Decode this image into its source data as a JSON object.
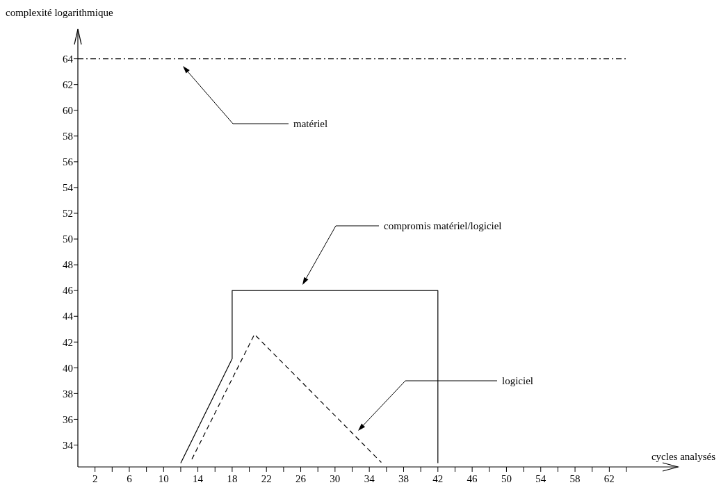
{
  "chart_data": {
    "type": "line",
    "xlabel": "cycles analysés",
    "ylabel": "complexité logarithmique",
    "xlim": [
      0,
      70
    ],
    "ylim": [
      32.3,
      66.3
    ],
    "xticks": [
      2,
      {
        "value": 4,
        "label": null
      },
      6,
      {
        "value": 8,
        "label": null
      },
      10,
      {
        "value": 12,
        "label": null
      },
      14,
      {
        "value": 16,
        "label": null
      },
      18,
      {
        "value": 20,
        "label": null
      },
      22,
      {
        "value": 24,
        "label": null
      },
      26,
      {
        "value": 28,
        "label": null
      },
      30,
      {
        "value": 32,
        "label": null
      },
      34,
      {
        "value": 36,
        "label": null
      },
      38,
      {
        "value": 40,
        "label": null
      },
      42,
      {
        "value": 44,
        "label": null
      },
      46,
      {
        "value": 48,
        "label": null
      },
      50,
      {
        "value": 52,
        "label": null
      },
      54,
      {
        "value": 56,
        "label": null
      },
      58,
      {
        "value": 60,
        "label": null
      },
      62,
      {
        "value": 64,
        "label": null
      }
    ],
    "yticks": [
      34,
      36,
      38,
      40,
      42,
      44,
      46,
      48,
      50,
      52,
      54,
      56,
      58,
      60,
      62,
      64
    ],
    "grid": false,
    "series": [
      {
        "color": "#000000",
        "line_style": "dashdot",
        "x": [
          0,
          64.1
        ],
        "values": [
          64,
          64
        ]
      },
      {
        "color": "#000000",
        "line_style": "solid",
        "x": [
          12,
          18,
          18,
          42,
          42
        ],
        "values": [
          32.6,
          40.7,
          46,
          46,
          32.6
        ]
      },
      {
        "color": "#000000",
        "line_style": "dashed",
        "x": [
          13.3,
          20.6,
          35.4
        ],
        "values": [
          32.9,
          42.6,
          32.65
        ]
      }
    ],
    "annotations": [
      "matériel",
      "compromis matériel/logiciel",
      "logiciel"
    ]
  }
}
